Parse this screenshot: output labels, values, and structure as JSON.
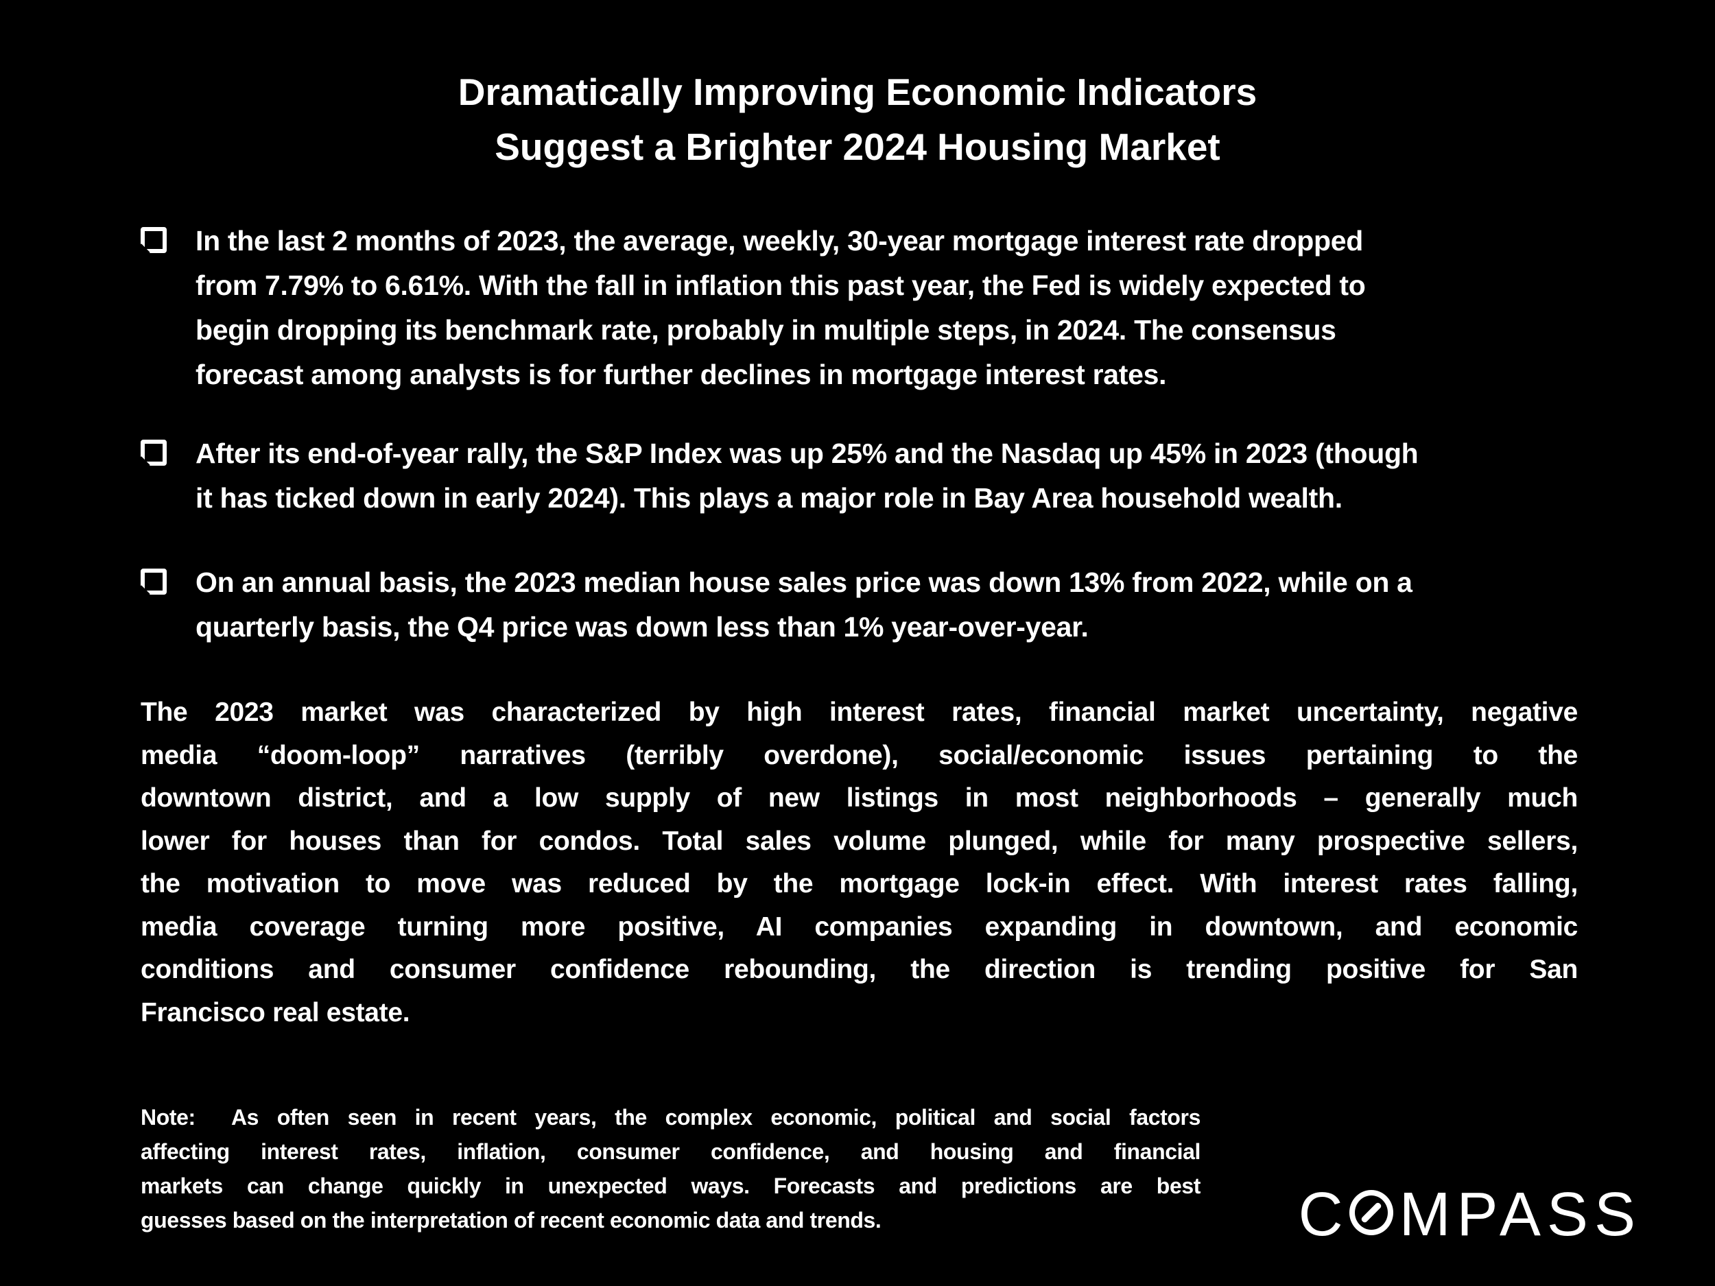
{
  "colors": {
    "background": "#000000",
    "text": "#ffffff"
  },
  "title": {
    "lines": [
      "Dramatically Improving Economic Indicators",
      "Suggest a Brighter 2024 Housing Market"
    ]
  },
  "bullets": [
    {
      "lines": [
        "In the last 2 months of 2023, the average, weekly, 30-year mortgage interest rate dropped",
        "from 7.79% to 6.61%. With the fall in inflation this past year, the Fed is widely expected to",
        "begin dropping its benchmark rate, probably in multiple steps, in 2024. The consensus",
        "forecast among analysts is for further declines in mortgage interest rates."
      ]
    },
    {
      "lines": [
        "After its end-of-year rally, the S&P Index was up 25% and the Nasdaq up 45% in 2023 (though",
        "it has ticked down in early 2024). This plays a major role in Bay Area household wealth."
      ]
    },
    {
      "lines": [
        "On an annual basis, the 2023 median house sales price was down 13% from 2022, while on a",
        "quarterly basis, the Q4 price was down less than 1% year-over-year."
      ]
    }
  ],
  "paragraph": {
    "justified_lines": [
      "The 2023 market was characterized by high interest rates, financial market uncertainty, negative",
      "media “doom-loop” narratives (terribly overdone), social/economic issues pertaining to the",
      "downtown district, and a low supply of new listings in most neighborhoods – generally much",
      "lower for houses than for condos. Total sales volume plunged, while for many prospective sellers,",
      "the motivation to move was reduced by the mortgage lock-in effect. With interest rates falling,",
      "media coverage turning more positive, AI companies expanding in downtown, and economic",
      "conditions and consumer confidence rebounding, the direction is trending positive for San"
    ],
    "last_line": "Francisco real estate."
  },
  "note": {
    "justified_lines": [
      "Note:  As often seen in recent years, the complex economic, political and social factors",
      "affecting interest rates, inflation, consumer confidence, and housing and financial",
      "markets can change quickly in unexpected ways. Forecasts and predictions are best"
    ],
    "last_line": "guesses based on the interpretation of recent economic data and trends."
  },
  "logo": {
    "name": "COMPASS",
    "letters_before_o": "C",
    "letters_after_o": "MPASS"
  }
}
